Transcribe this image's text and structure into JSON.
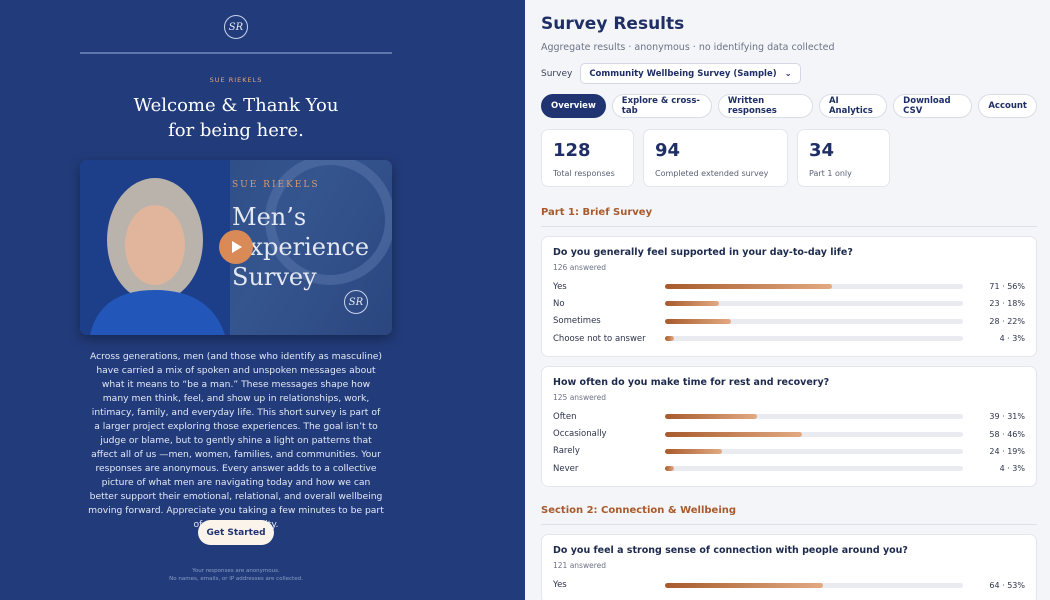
{
  "left": {
    "logo": "SR",
    "brand": "SUE RIEKELS",
    "title_line1": "Welcome & Thank You",
    "title_line2": "for being here.",
    "video": {
      "brand": "SUE RIEKELS",
      "title_lines": [
        "Men’s",
        "Experience",
        "Survey"
      ],
      "logo": "SR"
    },
    "intro": "Across generations, men (and those who identify as masculine) have carried a mix of spoken and unspoken messages about what it means to “be a man.” These messages shape how many men think, feel, and show up in relationships, work, intimacy, family, and everyday life. This short survey is part of a larger project exploring those experiences. The goal isn’t to judge or blame, but to gently shine a light on patterns that affect all of us —men, women, families, and communities. Your responses are anonymous. Every answer adds to a collective picture of what men are navigating today and how we can better support their emotional, relational, and overall wellbeing moving forward. Appreciate you taking a few minutes to be part of this community.",
    "button": "Get Started",
    "footer": [
      "Your responses are anonymous.",
      "No names, emails, or IP addresses are collected."
    ]
  },
  "right": {
    "title": "Survey Results",
    "subtitle": "Aggregate results · anonymous · no identifying data collected",
    "survey_label": "Survey",
    "survey_select": "Community Wellbeing Survey (Sample)",
    "tabs": [
      "Overview",
      "Explore & cross-tab",
      "Written responses",
      "AI Analytics",
      "Download CSV",
      "Account"
    ],
    "stats": [
      {
        "value": "128",
        "label": "Total responses"
      },
      {
        "value": "94",
        "label": "Completed extended survey"
      },
      {
        "value": "34",
        "label": "Part 1 only"
      }
    ],
    "sections": [
      {
        "title": "Part 1: Brief Survey",
        "questions": [
          {
            "question": "Do you generally feel supported in your day-to-day life?",
            "answered": "126 answered",
            "options": [
              {
                "label": "Yes",
                "percent": 56,
                "value_label": "71 · 56%"
              },
              {
                "label": "No",
                "percent": 18,
                "value_label": "23 · 18%"
              },
              {
                "label": "Sometimes",
                "percent": 22,
                "value_label": "28 · 22%"
              },
              {
                "label": "Choose not to answer",
                "percent": 3,
                "value_label": "4 · 3%"
              }
            ]
          },
          {
            "question": "How often do you make time for rest and recovery?",
            "answered": "125 answered",
            "options": [
              {
                "label": "Often",
                "percent": 31,
                "value_label": "39 · 31%"
              },
              {
                "label": "Occasionally",
                "percent": 46,
                "value_label": "58 · 46%"
              },
              {
                "label": "Rarely",
                "percent": 19,
                "value_label": "24 · 19%"
              },
              {
                "label": "Never",
                "percent": 3,
                "value_label": "4 · 3%"
              }
            ]
          }
        ]
      },
      {
        "title": "Section 2: Connection & Wellbeing",
        "questions": [
          {
            "question": "Do you feel a strong sense of connection with people around you?",
            "answered": "121 answered",
            "options": [
              {
                "label": "Yes",
                "percent": 53,
                "value_label": "64 · 53%"
              }
            ]
          }
        ]
      }
    ]
  }
}
